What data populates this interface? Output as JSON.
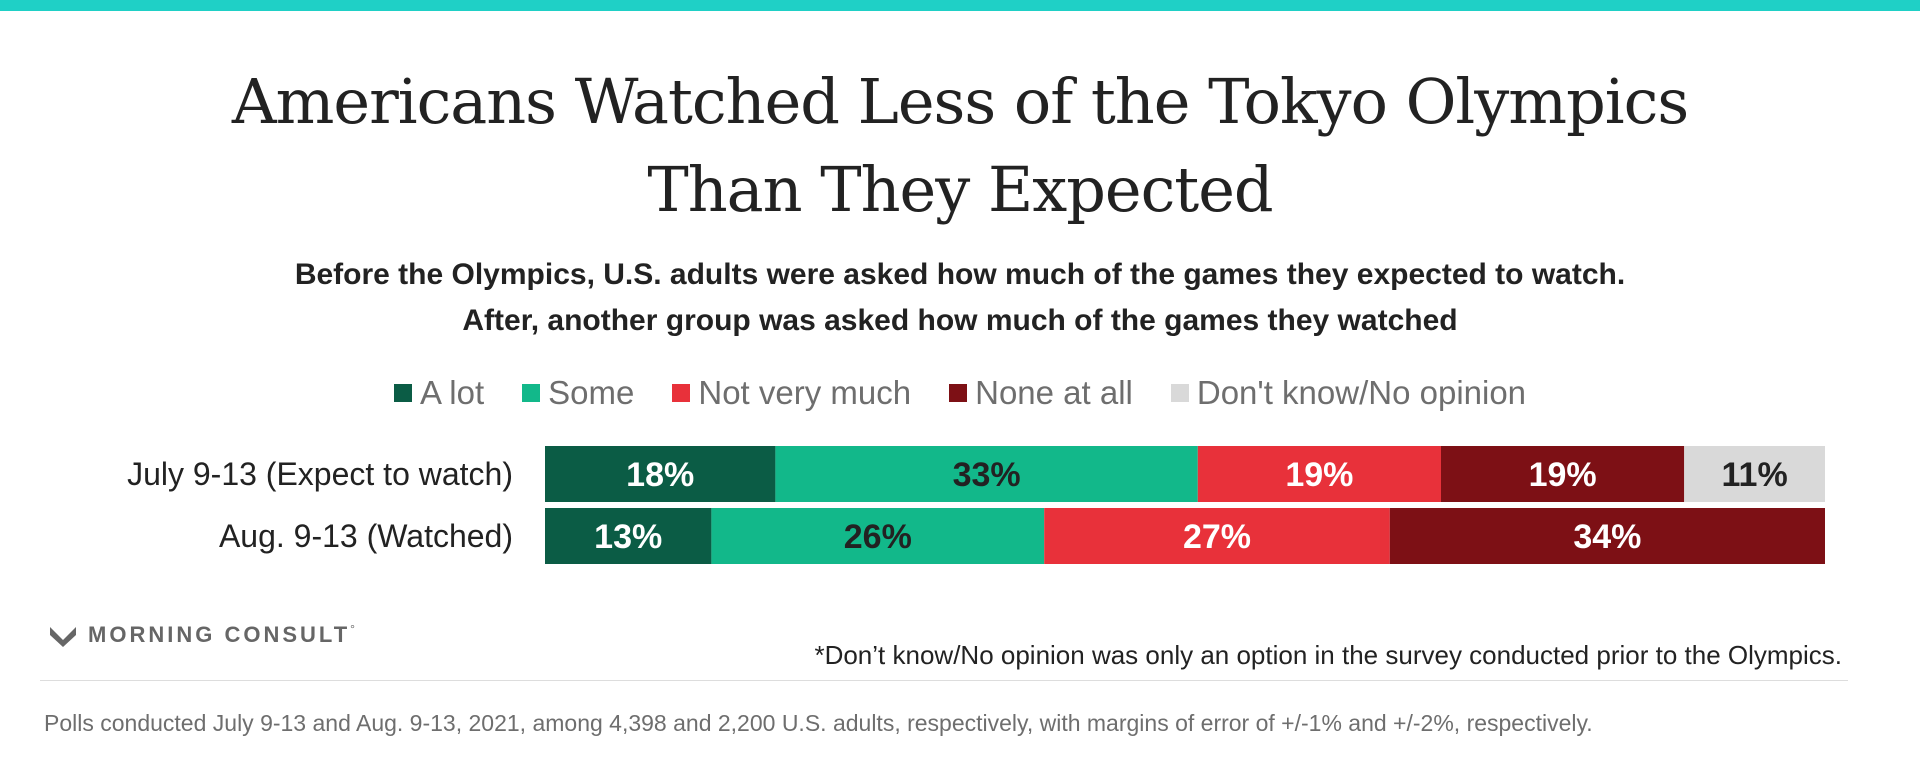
{
  "title_lines": [
    "Americans Watched Less of the Tokyo Olympics",
    "Than They Expected"
  ],
  "subtitle_lines": [
    "Before the Olympics, U.S. adults were asked how much of the games they expected to watch.",
    "After, another group was asked how much of the games they watched"
  ],
  "colors": {
    "accent_bar": "#1fd0c6",
    "a_lot": "#0b5c45",
    "some": "#12b88a",
    "not_very_much": "#e8313a",
    "none_at_all": "#7d1015",
    "dont_know": "#d9d9d9"
  },
  "chart_data": {
    "type": "bar",
    "orientation": "horizontal-stacked-100",
    "categories": [
      "July 9-13 (Expect to watch)",
      "Aug. 9-13 (Watched)"
    ],
    "series": [
      {
        "name": "A lot",
        "values": [
          18,
          13
        ],
        "color": "#0b5c45",
        "label_color": "#ffffff"
      },
      {
        "name": "Some",
        "values": [
          33,
          26
        ],
        "color": "#12b88a",
        "label_color": "#222222"
      },
      {
        "name": "Not very much",
        "values": [
          19,
          27
        ],
        "color": "#e8313a",
        "label_color": "#ffffff"
      },
      {
        "name": "None at all",
        "values": [
          19,
          34
        ],
        "color": "#7d1015",
        "label_color": "#ffffff"
      },
      {
        "name": "Don't know/No opinion",
        "values": [
          11,
          0
        ],
        "color": "#d9d9d9",
        "label_color": "#222222"
      }
    ],
    "value_suffix": "%",
    "legend_position": "top-center",
    "grid": false
  },
  "brand": {
    "name": "MORNING CONSULT",
    "mark": "°"
  },
  "footnote": "*Don’t know/No opinion was only an option in the survey conducted prior to the Olympics.",
  "source": "Polls conducted July 9-13 and Aug. 9-13, 2021, among 4,398 and 2,200 U.S. adults, respectively, with margins of error of +/-1% and +/-2%, respectively."
}
